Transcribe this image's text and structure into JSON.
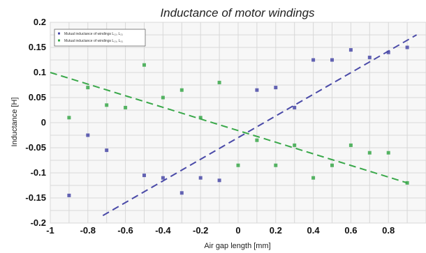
{
  "chart_data": {
    "type": "scatter",
    "title": "Inductance of motor windings",
    "xlabel": "Air gap length [mm]",
    "ylabel": "Inductance [H]",
    "xlim": [
      -1,
      1
    ],
    "ylim": [
      -0.2,
      0.2
    ],
    "xticks": [
      -1,
      -0.8,
      -0.6,
      -0.4,
      -0.2,
      0,
      0.2,
      0.4,
      0.6,
      0.8
    ],
    "xtick_labels": [
      "-1",
      "-0.8",
      "-0.6",
      "-0.4",
      "-0.2",
      "0",
      "0.2",
      "0.4",
      "0.6",
      "0.8"
    ],
    "yticks": [
      -0.2,
      -0.15,
      -0.1,
      -0.05,
      0,
      0.05,
      0.1,
      0.15,
      0.2
    ],
    "ytick_labels": [
      "-0.2",
      "-0.15",
      "-0.1",
      "-0.05",
      "0",
      "0.05",
      "0.1",
      "0.15",
      "0.2"
    ],
    "grid": true,
    "legend_position": "top-left",
    "series": [
      {
        "name": "Mutual inductance of windings L₁₂, L₂₁",
        "color": "#4a4aa8",
        "points": [
          [
            -0.9,
            -0.145
          ],
          [
            -0.8,
            -0.025
          ],
          [
            -0.7,
            -0.055
          ],
          [
            -0.5,
            -0.105
          ],
          [
            -0.4,
            -0.11
          ],
          [
            -0.3,
            -0.14
          ],
          [
            -0.2,
            -0.11
          ],
          [
            -0.1,
            -0.115
          ],
          [
            0.1,
            0.065
          ],
          [
            0.2,
            0.07
          ],
          [
            0.3,
            0.03
          ],
          [
            0.4,
            0.125
          ],
          [
            0.5,
            0.125
          ],
          [
            0.6,
            0.145
          ],
          [
            0.7,
            0.13
          ],
          [
            0.8,
            0.14
          ],
          [
            0.9,
            0.15
          ]
        ]
      },
      {
        "name": "Mutual inductance of windings L₁₃, L₃₁",
        "color": "#3aa84a",
        "points": [
          [
            -0.9,
            0.01
          ],
          [
            -0.8,
            0.07
          ],
          [
            -0.7,
            0.035
          ],
          [
            -0.6,
            0.03
          ],
          [
            -0.5,
            0.115
          ],
          [
            -0.4,
            0.05
          ],
          [
            -0.3,
            0.065
          ],
          [
            -0.2,
            0.01
          ],
          [
            -0.1,
            0.08
          ],
          [
            0.0,
            -0.085
          ],
          [
            0.1,
            -0.035
          ],
          [
            0.2,
            -0.085
          ],
          [
            0.3,
            -0.045
          ],
          [
            0.4,
            -0.11
          ],
          [
            0.5,
            -0.085
          ],
          [
            0.6,
            -0.045
          ],
          [
            0.7,
            -0.06
          ],
          [
            0.8,
            -0.06
          ],
          [
            0.9,
            -0.12
          ]
        ]
      }
    ],
    "fit_lines": [
      {
        "series": "Mutual inductance of windings L₁₂, L₂₁",
        "color": "#4a4aa8",
        "x": [
          -0.72,
          0.95
        ],
        "y": [
          -0.185,
          0.175
        ],
        "style": "dashed"
      },
      {
        "series": "Mutual inductance of windings L₁₃, L₃₁",
        "color": "#3aa84a",
        "x": [
          -1.0,
          0.9
        ],
        "y": [
          0.1,
          -0.12
        ],
        "style": "dashed"
      }
    ]
  }
}
